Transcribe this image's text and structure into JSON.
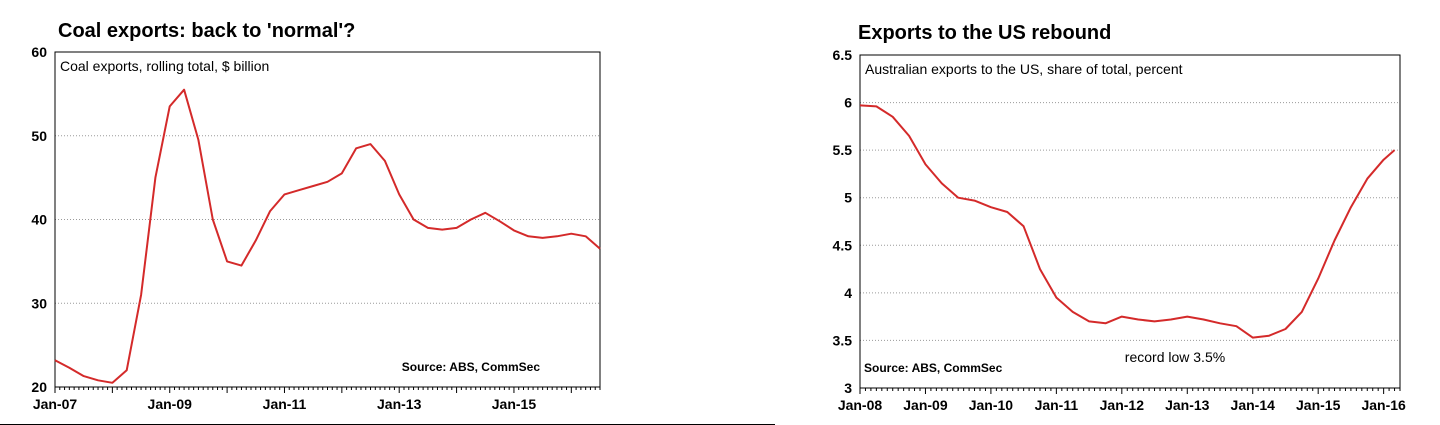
{
  "chart_data": [
    {
      "type": "line",
      "title": "Coal exports: back to 'normal'?",
      "subtitle": "Coal exports, rolling total, $ billion",
      "source": "Source: ABS, CommSec",
      "ylim": [
        20,
        60
      ],
      "yticks": [
        "20",
        "30",
        "40",
        "50",
        "60"
      ],
      "x_tick_labels": [
        "Jan-07",
        "Jan-09",
        "Jan-11",
        "Jan-13",
        "Jan-15"
      ],
      "x_range": [
        "Jan-07",
        "Jul-16"
      ],
      "color": "#d42a2a",
      "grid": true,
      "series": [
        {
          "x": [
            "Jan-07",
            "Apr-07",
            "Jul-07",
            "Oct-07",
            "Jan-08",
            "Apr-08",
            "Jul-08",
            "Oct-08",
            "Jan-09",
            "Apr-09",
            "Jul-09",
            "Oct-09",
            "Jan-10",
            "Apr-10",
            "Jul-10",
            "Oct-10",
            "Jan-11",
            "Apr-11",
            "Jul-11",
            "Oct-11",
            "Jan-12",
            "Apr-12",
            "Jul-12",
            "Oct-12",
            "Jan-13",
            "Apr-13",
            "Jul-13",
            "Oct-13",
            "Jan-14",
            "Apr-14",
            "Jul-14",
            "Oct-14",
            "Jan-15",
            "Apr-15",
            "Jul-15",
            "Oct-15",
            "Jan-16",
            "Apr-16",
            "Jul-16"
          ],
          "y": [
            23.2,
            22.3,
            21.3,
            20.8,
            20.5,
            22.0,
            31.0,
            45.0,
            53.5,
            55.5,
            49.5,
            40.0,
            35.0,
            34.5,
            37.5,
            41.0,
            43.0,
            43.5,
            44.0,
            44.5,
            45.5,
            48.5,
            49.0,
            47.0,
            43.0,
            40.0,
            39.0,
            38.8,
            39.0,
            40.0,
            40.8,
            39.8,
            38.7,
            38.0,
            37.8,
            38.0,
            38.3,
            38.0,
            36.5
          ]
        }
      ]
    },
    {
      "type": "line",
      "title": "Exports to the US rebound",
      "subtitle": "Australian exports to the US, share of total, percent",
      "source": "Source: ABS, CommSec",
      "annotation": "record low 3.5%",
      "ylim": [
        3,
        6.5
      ],
      "yticks": [
        "3",
        "3.5",
        "4",
        "4.5",
        "5",
        "5.5",
        "6",
        "6.5"
      ],
      "x_tick_labels": [
        "Jan-08",
        "Jan-09",
        "Jan-10",
        "Jan-11",
        "Jan-12",
        "Jan-13",
        "Jan-14",
        "Jan-15",
        "Jan-16"
      ],
      "x_range": [
        "Jan-08",
        "Apr-16"
      ],
      "color": "#d42a2a",
      "grid": true,
      "series": [
        {
          "x": [
            "Jan-08",
            "Apr-08",
            "Jul-08",
            "Oct-08",
            "Jan-09",
            "Apr-09",
            "Jul-09",
            "Oct-09",
            "Jan-10",
            "Apr-10",
            "Jul-10",
            "Oct-10",
            "Jan-11",
            "Apr-11",
            "Jul-11",
            "Oct-11",
            "Jan-12",
            "Apr-12",
            "Jul-12",
            "Oct-12",
            "Jan-13",
            "Apr-13",
            "Jul-13",
            "Oct-13",
            "Jan-14",
            "Apr-14",
            "Jul-14",
            "Oct-14",
            "Jan-15",
            "Apr-15",
            "Jul-15",
            "Oct-15",
            "Jan-16",
            "Mar-16"
          ],
          "y": [
            5.97,
            5.96,
            5.85,
            5.65,
            5.35,
            5.15,
            5.0,
            4.97,
            4.9,
            4.85,
            4.7,
            4.25,
            3.95,
            3.8,
            3.7,
            3.68,
            3.75,
            3.72,
            3.7,
            3.72,
            3.75,
            3.72,
            3.68,
            3.65,
            3.53,
            3.55,
            3.62,
            3.8,
            4.15,
            4.55,
            4.9,
            5.2,
            5.4,
            5.5
          ]
        }
      ]
    }
  ]
}
